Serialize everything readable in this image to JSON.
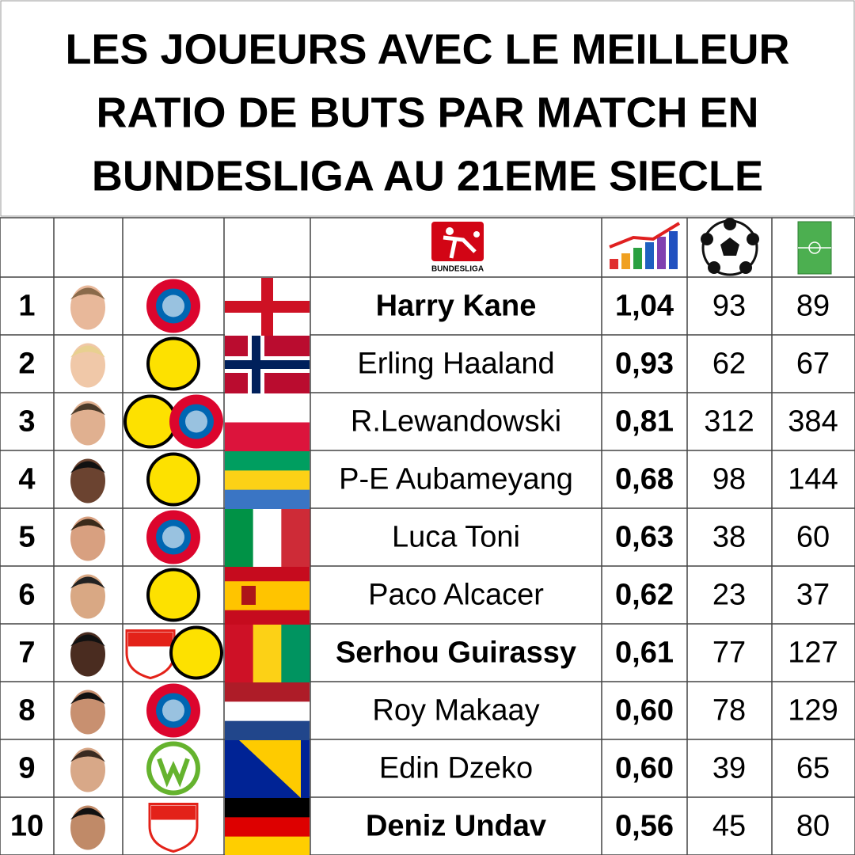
{
  "title": [
    "LES JOUEURS AVEC LE MEILLEUR",
    "RATIO DE BUTS PAR MATCH EN",
    "BUNDESLIGA AU 21EME SIECLE"
  ],
  "header": {
    "logo_text": "BUNDESLIGA"
  },
  "table": {
    "rows": [
      {
        "rank": 1,
        "name": "Harry Kane",
        "ratio": "1,04",
        "goals": 93,
        "matches": 89,
        "bold": true
      },
      {
        "rank": 2,
        "name": "Erling Haaland",
        "ratio": "0,93",
        "goals": 62,
        "matches": 67,
        "bold": false
      },
      {
        "rank": 3,
        "name": "R.Lewandowski",
        "ratio": "0,81",
        "goals": 312,
        "matches": 384,
        "bold": false
      },
      {
        "rank": 4,
        "name": "P-E Aubameyang",
        "ratio": "0,68",
        "goals": 98,
        "matches": 144,
        "bold": false
      },
      {
        "rank": 5,
        "name": "Luca Toni",
        "ratio": "0,63",
        "goals": 38,
        "matches": 60,
        "bold": false
      },
      {
        "rank": 6,
        "name": "Paco Alcacer",
        "ratio": "0,62",
        "goals": 23,
        "matches": 37,
        "bold": false
      },
      {
        "rank": 7,
        "name": "Serhou Guirassy",
        "ratio": "0,61",
        "goals": 77,
        "matches": 127,
        "bold": true
      },
      {
        "rank": 8,
        "name": "Roy Makaay",
        "ratio": "0,60",
        "goals": 78,
        "matches": 129,
        "bold": false
      },
      {
        "rank": 9,
        "name": "Edin Dzeko",
        "ratio": "0,60",
        "goals": 39,
        "matches": 65,
        "bold": false
      },
      {
        "rank": 10,
        "name": "Deniz Undav",
        "ratio": "0,56",
        "goals": 45,
        "matches": 80,
        "bold": true
      }
    ]
  }
}
